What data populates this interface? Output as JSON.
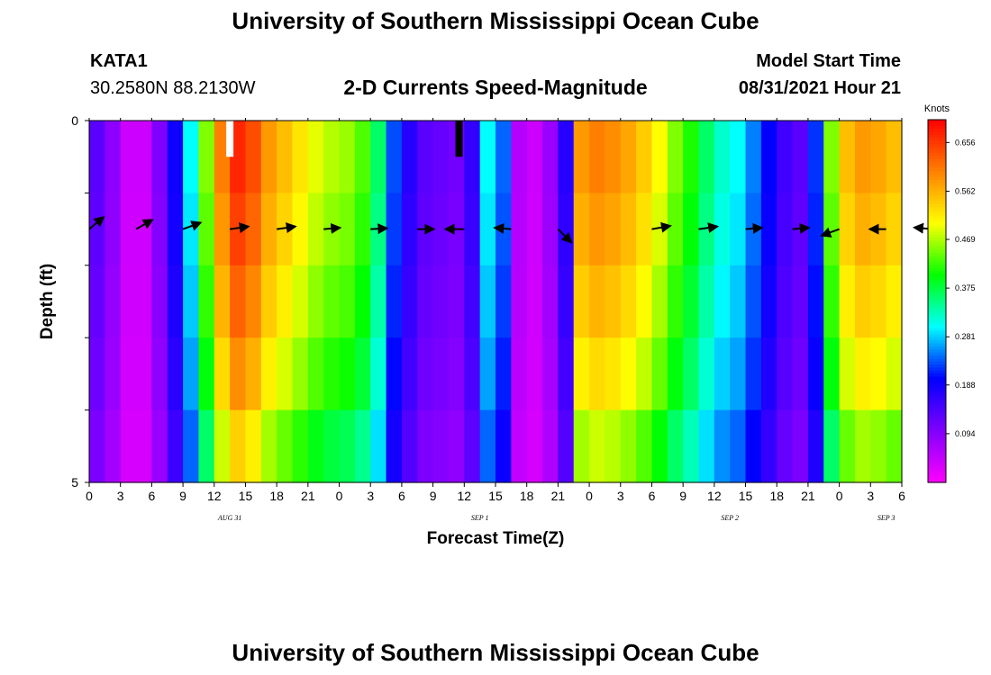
{
  "title_top": "University of Southern Mississippi Ocean Cube",
  "title_bottom": "University of Southern Mississippi Ocean Cube",
  "station": {
    "id": "KATA1",
    "coords": "30.2580N  88.2130W"
  },
  "model": {
    "label": "Model Start Time",
    "time": "08/31/2021 Hour 21"
  },
  "chart_data": {
    "type": "heatmap",
    "title": "2-D Currents Speed-Magnitude",
    "xlabel": "Forecast Time(Z)",
    "ylabel": "Depth (ft)",
    "x_ticks": [
      "0",
      "3",
      "6",
      "9",
      "12",
      "15",
      "18",
      "21",
      "0",
      "3",
      "6",
      "9",
      "12",
      "15",
      "18",
      "21",
      "0",
      "3",
      "6",
      "9",
      "12",
      "15",
      "18",
      "21",
      "0",
      "3",
      "6"
    ],
    "day_labels": [
      {
        "label": "AUG 31",
        "tick_index": 4.5
      },
      {
        "label": "SEP 1",
        "tick_index": 12.5
      },
      {
        "label": "SEP 2",
        "tick_index": 20.5
      },
      {
        "label": "SEP 3",
        "tick_index": 25.5
      }
    ],
    "y_ticks": [
      "0",
      "",
      "",
      "",
      "",
      "5"
    ],
    "ylim": [
      0,
      5
    ],
    "x_range_hours": [
      0,
      78
    ],
    "colorbar": {
      "unit": "Knots",
      "range": [
        0.0,
        0.7
      ],
      "tick_values": [
        0.094,
        0.188,
        0.281,
        0.375,
        0.469,
        0.562,
        0.656
      ],
      "tick_labels": [
        "0.094",
        "0.188",
        "0.281",
        "0.375",
        "0.469",
        "0.562",
        "0.656"
      ],
      "colors": [
        "#ff00ff",
        "#8000ff",
        "#0000ff",
        "#00ffff",
        "#00ff00",
        "#ffff00",
        "#ff8000",
        "#ff0000"
      ]
    },
    "column_hours": [
      0,
      1.5,
      3,
      4.5,
      6,
      7.5,
      9,
      10.5,
      12,
      13.5,
      15,
      16.5,
      18,
      19.5,
      21,
      22.5,
      24,
      25.5,
      27,
      28.5,
      30,
      31.5,
      33,
      34.5,
      36,
      37.5,
      39,
      40.5,
      42,
      43.5,
      45,
      46.5,
      48,
      49.5,
      51,
      52.5,
      54,
      55.5,
      57,
      58.5,
      60,
      61.5,
      63,
      64.5,
      66,
      67.5,
      69,
      70.5,
      72,
      73.5,
      75,
      76.5
    ],
    "speed_profile_knots": [
      0.13,
      0.09,
      0.04,
      0.04,
      0.1,
      0.19,
      0.3,
      0.45,
      0.6,
      0.67,
      0.64,
      0.58,
      0.55,
      0.52,
      0.49,
      0.47,
      0.46,
      0.43,
      0.36,
      0.23,
      0.17,
      0.13,
      0.12,
      0.11,
      0.16,
      0.3,
      0.24,
      0.06,
      0.04,
      0.08,
      0.17,
      0.58,
      0.6,
      0.59,
      0.57,
      0.54,
      0.5,
      0.45,
      0.41,
      0.36,
      0.32,
      0.3,
      0.25,
      0.2,
      0.15,
      0.13,
      0.22,
      0.45,
      0.55,
      0.58,
      0.57,
      0.55
    ],
    "depth_factor": [
      1.0,
      0.97,
      0.93,
      0.88,
      0.8
    ],
    "masked_cells": [
      {
        "hour": 13.5,
        "depth_row": 0,
        "color": "#ffffff"
      },
      {
        "hour": 35.5,
        "depth_row": 0,
        "color": "#000000"
      }
    ],
    "vector_times": [
      0,
      6,
      9,
      12,
      15,
      18,
      21,
      24,
      27,
      30,
      33,
      36,
      39,
      42,
      45,
      48,
      51,
      54,
      57,
      60,
      63,
      66,
      69,
      72,
      75,
      78
    ],
    "vector_depth_ft": [
      2,
      3,
      4
    ],
    "vectors": [
      {
        "t": 0,
        "d": 1,
        "dir_deg": 40,
        "len": 0.8
      },
      {
        "t": 3,
        "d": 1,
        "dir_deg": 30,
        "len": 0.8
      },
      {
        "t": 6,
        "d": 1,
        "dir_deg": 20,
        "len": 0.8
      },
      {
        "t": 9,
        "d": 1,
        "dir_deg": 8,
        "len": 0.8
      },
      {
        "t": 12,
        "d": 1,
        "dir_deg": 8,
        "len": 0.8
      },
      {
        "t": 15,
        "d": 1,
        "dir_deg": 5,
        "len": 0.7
      },
      {
        "t": 18,
        "d": 1,
        "dir_deg": 3,
        "len": 0.7
      },
      {
        "t": 21,
        "d": 1,
        "dir_deg": 0,
        "len": 0.7
      },
      {
        "t": 24,
        "d": 1,
        "dir_deg": -180,
        "len": 0.8
      },
      {
        "t": 27,
        "d": 1,
        "dir_deg": -185,
        "len": 0.7
      },
      {
        "t": 30,
        "d": 1,
        "dir_deg": -45,
        "len": 0.8
      },
      {
        "t": 36,
        "d": 1,
        "dir_deg": 10,
        "len": 0.8
      },
      {
        "t": 39,
        "d": 1,
        "dir_deg": 8,
        "len": 0.8
      },
      {
        "t": 42,
        "d": 1,
        "dir_deg": 5,
        "len": 0.7
      },
      {
        "t": 45,
        "d": 1,
        "dir_deg": 5,
        "len": 0.7
      },
      {
        "t": 48,
        "d": 1,
        "dir_deg": -160,
        "len": 0.8
      },
      {
        "t": 51,
        "d": 1,
        "dir_deg": -180,
        "len": 0.7
      },
      {
        "t": 54,
        "d": 1,
        "dir_deg": -185,
        "len": 0.8
      }
    ]
  }
}
